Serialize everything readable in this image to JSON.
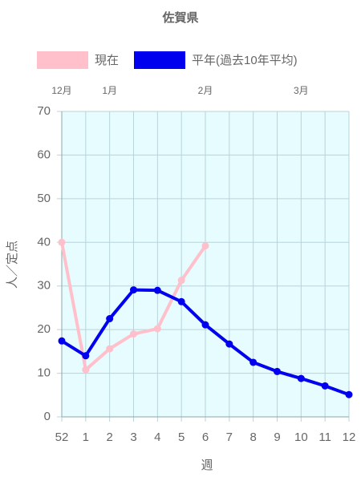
{
  "chart_data": {
    "type": "line",
    "title": "佐賀県",
    "categories": [
      "52",
      "1",
      "2",
      "3",
      "4",
      "5",
      "6",
      "7",
      "8",
      "9",
      "10",
      "11",
      "12"
    ],
    "series": [
      {
        "name": "現在",
        "color": "#ffc0cb",
        "values": [
          40,
          10.8,
          15.6,
          19,
          20.2,
          31.3,
          39.2,
          null,
          null,
          null,
          null,
          null,
          null
        ]
      },
      {
        "name": "平年(過去10年平均)",
        "color": "#0000ee",
        "values": [
          17.4,
          14,
          22.5,
          29.1,
          29,
          26.4,
          21.1,
          16.7,
          12.5,
          10.4,
          8.8,
          7.1,
          5.1
        ]
      }
    ],
    "month_labels": [
      {
        "text": "12月",
        "category": "52"
      },
      {
        "text": "1月",
        "category": "2"
      },
      {
        "text": "2月",
        "category": "6"
      },
      {
        "text": "3月",
        "category": "10"
      }
    ],
    "ylim": [
      0,
      70
    ],
    "yticks": [
      0,
      10,
      20,
      30,
      40,
      50,
      60,
      70
    ],
    "ylabel": "人／定点",
    "xlabel": "週",
    "grid": true
  }
}
